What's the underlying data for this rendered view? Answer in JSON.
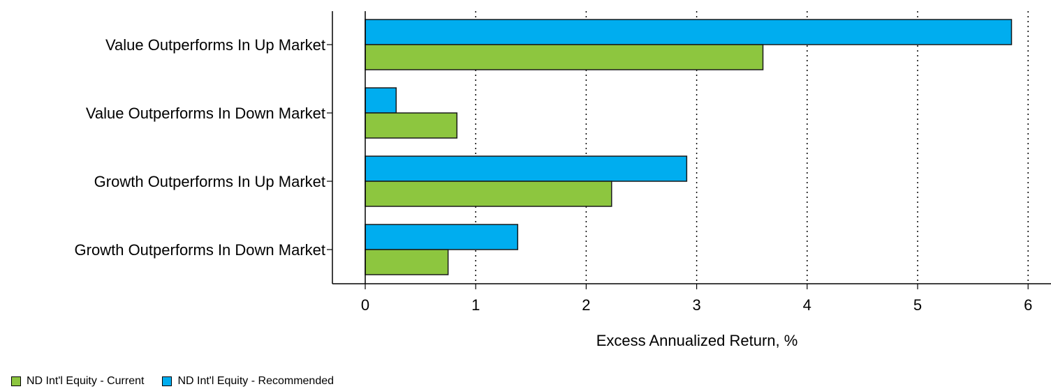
{
  "chart_data": {
    "type": "bar",
    "orientation": "horizontal",
    "categories": [
      "Value Outperforms In Up Market",
      "Value Outperforms In Down Market",
      "Growth Outperforms In Up Market",
      "Growth Outperforms In Down Market"
    ],
    "series": [
      {
        "name": "ND Int'l Equity - Recommended",
        "color": "#00adef",
        "values": [
          5.85,
          0.28,
          2.91,
          1.38
        ]
      },
      {
        "name": "ND Int'l Equity - Current",
        "color": "#8dc63f",
        "values": [
          3.6,
          0.83,
          2.23,
          0.75
        ]
      }
    ],
    "xlabel": "Excess Annualized Return, %",
    "ylabel": "",
    "xlim": [
      -0.3,
      6.2
    ],
    "xticks": [
      "0",
      "1",
      "2",
      "3",
      "4",
      "5",
      "6"
    ],
    "grid": "vertical dotted",
    "legend_position": "bottom-left"
  },
  "legend": [
    {
      "label": "ND Int'l Equity - Current",
      "color": "#8dc63f"
    },
    {
      "label": "ND Int'l Equity - Recommended",
      "color": "#00adef"
    }
  ]
}
